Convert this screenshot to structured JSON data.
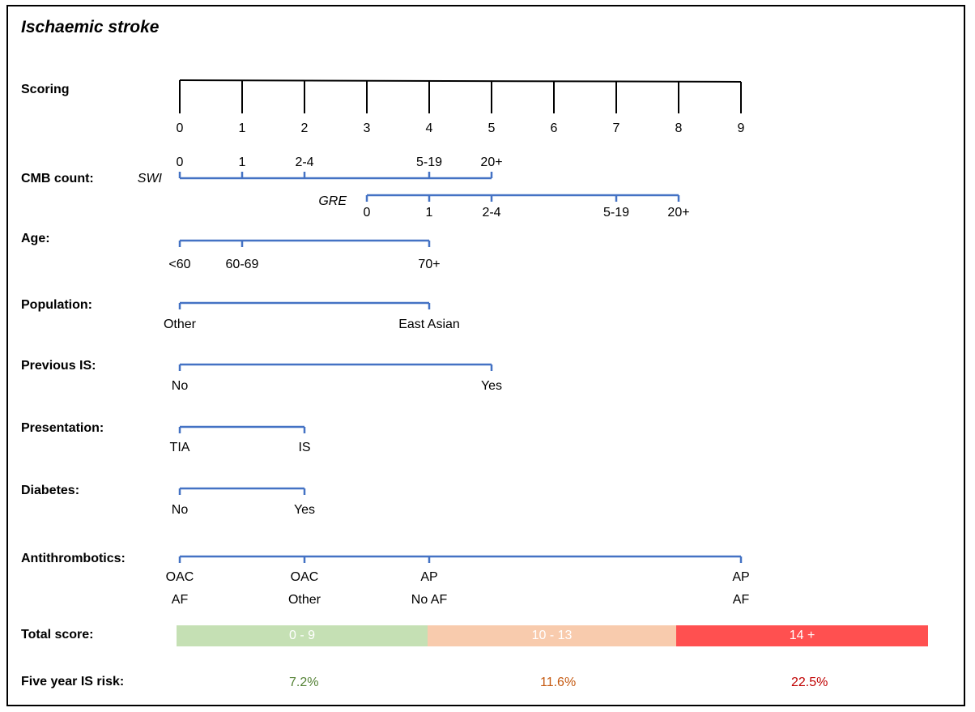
{
  "title": "Ischaemic stroke",
  "labels": {
    "scoring": "Scoring",
    "cmb_count": "CMB count:",
    "age": "Age:",
    "population": "Population:",
    "previous_is": "Previous IS:",
    "presentation": "Presentation:",
    "diabetes": "Diabetes:",
    "antithrombotics": "Antithrombotics:",
    "total_score": "Total score:",
    "five_year_risk": "Five year IS risk:"
  },
  "scoring_ticks": [
    "0",
    "1",
    "2",
    "3",
    "4",
    "5",
    "6",
    "7",
    "8",
    "9"
  ],
  "cmb": {
    "swi_label": "SWI",
    "gre_label": "GRE",
    "swi": [
      {
        "label": "0",
        "points": 0
      },
      {
        "label": "1",
        "points": 1
      },
      {
        "label": "2-4",
        "points": 2
      },
      {
        "label": "5-19",
        "points": 4
      },
      {
        "label": "20+",
        "points": 5
      }
    ],
    "gre": [
      {
        "label": "0",
        "points": 3
      },
      {
        "label": "1",
        "points": 4
      },
      {
        "label": "2-4",
        "points": 5
      },
      {
        "label": "5-19",
        "points": 7
      },
      {
        "label": "20+",
        "points": 8
      }
    ]
  },
  "age": [
    {
      "label": "<60",
      "points": 0
    },
    {
      "label": "60-69",
      "points": 1
    },
    {
      "label": "70+",
      "points": 4
    }
  ],
  "population": [
    {
      "label": "Other",
      "points": 0
    },
    {
      "label": "East Asian",
      "points": 4
    }
  ],
  "previous_is": [
    {
      "label": "No",
      "points": 0
    },
    {
      "label": "Yes",
      "points": 5
    }
  ],
  "presentation": [
    {
      "label": "TIA",
      "points": 0
    },
    {
      "label": "IS",
      "points": 2
    }
  ],
  "diabetes": [
    {
      "label": "No",
      "points": 0
    },
    {
      "label": "Yes",
      "points": 2
    }
  ],
  "antithrombotics": [
    {
      "label1": "OAC",
      "label2": "AF",
      "points": 0
    },
    {
      "label1": "OAC",
      "label2": "Other",
      "points": 2
    },
    {
      "label1": "AP",
      "label2": "No AF",
      "points": 4
    },
    {
      "label1": "AP",
      "label2": "AF",
      "points": 9
    }
  ],
  "total_score": {
    "bands": [
      {
        "label": "0 - 9",
        "color": "#c5e0b4"
      },
      {
        "label": "10 - 13",
        "color": "#f8cbad"
      },
      {
        "label": "14 +",
        "color": "#ff5050"
      }
    ]
  },
  "five_year_risk": [
    {
      "value": "7.2%",
      "color": "#548235"
    },
    {
      "value": "11.6%",
      "color": "#c55a11"
    },
    {
      "value": "22.5%",
      "color": "#c00000"
    }
  ],
  "colors": {
    "scale_line": "#4472c4",
    "scoring_line": "#000000"
  }
}
